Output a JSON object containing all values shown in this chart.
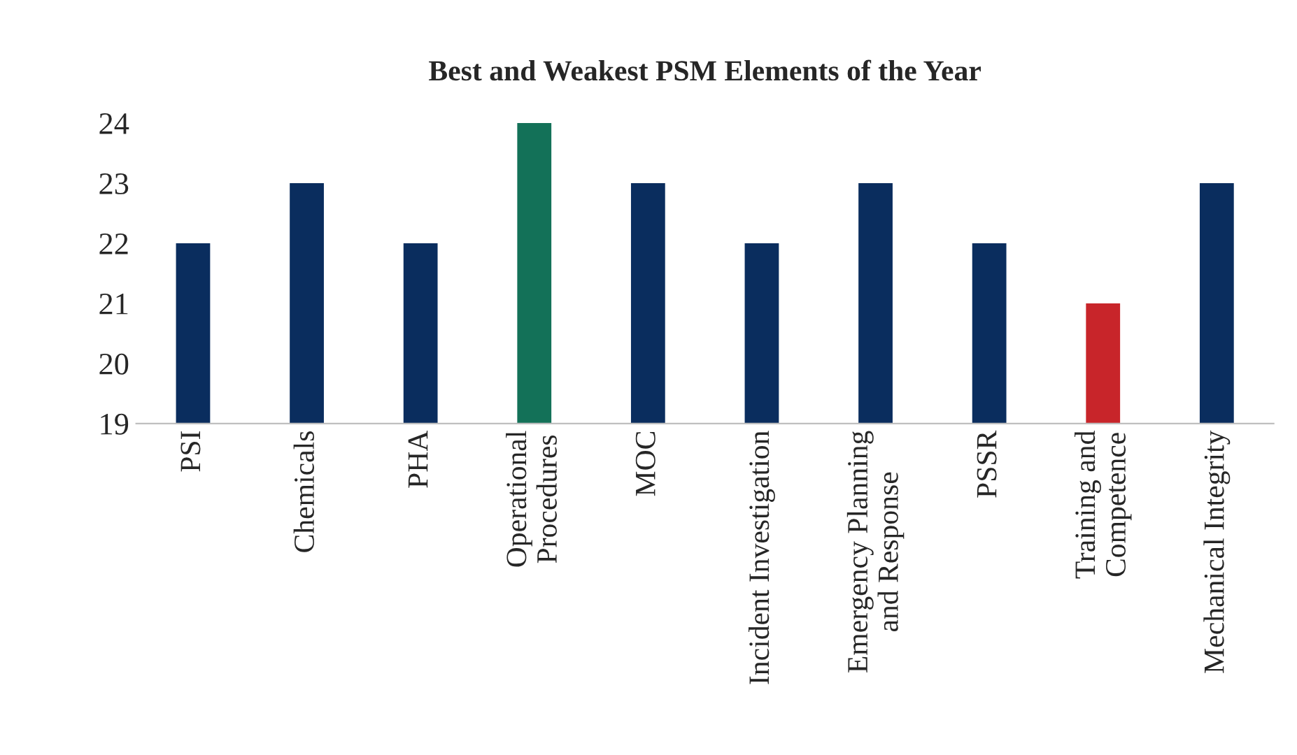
{
  "chart_data": {
    "type": "bar",
    "title": "Best and Weakest PSM Elements of the Year",
    "categories": [
      "PSI",
      "Chemicals",
      "PHA",
      "Operational\nProcedures",
      "MOC",
      "Incident Investigation",
      "Emergency Planning\nand Response",
      "PSSR",
      "Training and\nCompetence",
      "Mechanical Integrity"
    ],
    "values": [
      22,
      23,
      22,
      24,
      23,
      22,
      23,
      22,
      21,
      23
    ],
    "colors": [
      "#0a2d5e",
      "#0a2d5e",
      "#0a2d5e",
      "#137158",
      "#0a2d5e",
      "#0a2d5e",
      "#0a2d5e",
      "#0a2d5e",
      "#c8252a",
      "#0a2d5e"
    ],
    "ylim": [
      19,
      24
    ],
    "yticks": [
      19,
      20,
      21,
      22,
      23,
      24
    ],
    "grid": false,
    "legend": false
  }
}
